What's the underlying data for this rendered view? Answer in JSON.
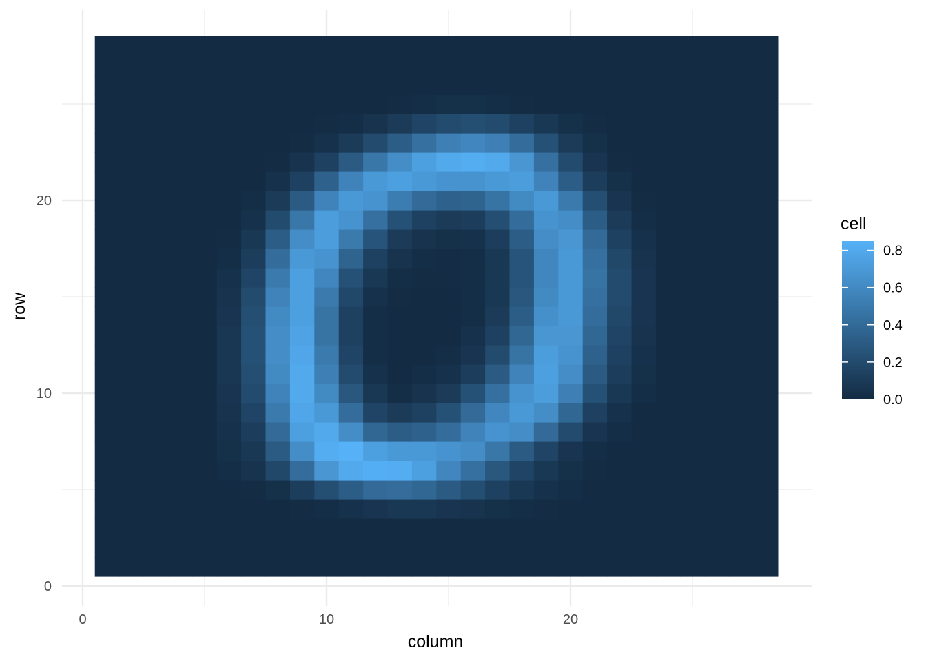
{
  "chart_data": {
    "type": "heatmap",
    "xlabel": "column",
    "ylabel": "row",
    "xlim": [
      0,
      30
    ],
    "ylim": [
      0,
      29
    ],
    "x_ticks": [
      0,
      10,
      20
    ],
    "y_ticks": [
      0,
      10,
      20
    ],
    "x_tick_labels": [
      "0",
      "10",
      "20"
    ],
    "y_tick_labels": [
      "0",
      "10",
      "20"
    ],
    "grid": true,
    "legend": {
      "title": "cell",
      "position": "right",
      "breaks": [
        0.0,
        0.2,
        0.4,
        0.6,
        0.8
      ],
      "labels": [
        "0.0",
        "0.2",
        "0.4",
        "0.6",
        "0.8"
      ],
      "range": [
        0,
        0.85
      ],
      "color_low": "#132B43",
      "color_high": "#56B1F7"
    },
    "columns": 28,
    "rows": 28,
    "note_row_order": "cells[0] is row 1 (bottom), cells[27] is row 28 (top); each inner array is columns 1..28",
    "cells": [
      [
        0,
        0,
        0,
        0,
        0,
        0,
        0,
        0,
        0,
        0,
        0,
        0,
        0,
        0,
        0,
        0,
        0,
        0,
        0,
        0,
        0,
        0,
        0,
        0,
        0,
        0,
        0,
        0
      ],
      [
        0,
        0,
        0,
        0,
        0,
        0,
        0,
        0,
        0,
        0,
        0,
        0,
        0,
        0,
        0,
        0,
        0,
        0,
        0,
        0,
        0,
        0,
        0,
        0,
        0,
        0,
        0,
        0
      ],
      [
        0,
        0,
        0,
        0,
        0,
        0,
        0,
        0,
        0,
        0,
        0,
        0,
        0,
        0,
        0,
        0,
        0,
        0,
        0,
        0,
        0,
        0,
        0,
        0,
        0,
        0,
        0,
        0
      ],
      [
        0,
        0,
        0,
        0,
        0,
        0,
        0,
        0,
        0.01,
        0.02,
        0.04,
        0.06,
        0.08,
        0.08,
        0.06,
        0.05,
        0.03,
        0.02,
        0.01,
        0,
        0,
        0,
        0,
        0,
        0,
        0,
        0,
        0
      ],
      [
        0,
        0,
        0,
        0,
        0,
        0,
        0.01,
        0.03,
        0.12,
        0.22,
        0.32,
        0.4,
        0.42,
        0.38,
        0.3,
        0.22,
        0.14,
        0.08,
        0.04,
        0.02,
        0,
        0,
        0,
        0,
        0,
        0,
        0,
        0
      ],
      [
        0,
        0,
        0,
        0,
        0,
        0.02,
        0.05,
        0.18,
        0.42,
        0.68,
        0.8,
        0.83,
        0.82,
        0.74,
        0.58,
        0.44,
        0.28,
        0.16,
        0.08,
        0.03,
        0.01,
        0,
        0,
        0,
        0,
        0,
        0,
        0
      ],
      [
        0,
        0,
        0,
        0,
        0,
        0.03,
        0.08,
        0.3,
        0.62,
        0.82,
        0.85,
        0.74,
        0.7,
        0.7,
        0.66,
        0.62,
        0.48,
        0.3,
        0.16,
        0.06,
        0.02,
        0,
        0,
        0,
        0,
        0,
        0,
        0
      ],
      [
        0,
        0,
        0,
        0,
        0,
        0.04,
        0.12,
        0.4,
        0.74,
        0.8,
        0.62,
        0.38,
        0.32,
        0.34,
        0.42,
        0.56,
        0.66,
        0.62,
        0.4,
        0.2,
        0.06,
        0.02,
        0,
        0,
        0,
        0,
        0,
        0
      ],
      [
        0,
        0,
        0,
        0,
        0,
        0.05,
        0.16,
        0.5,
        0.78,
        0.7,
        0.42,
        0.16,
        0.1,
        0.14,
        0.24,
        0.4,
        0.58,
        0.7,
        0.62,
        0.38,
        0.14,
        0.04,
        0,
        0,
        0,
        0,
        0,
        0
      ],
      [
        0,
        0,
        0,
        0,
        0,
        0.06,
        0.2,
        0.56,
        0.8,
        0.6,
        0.28,
        0.08,
        0.02,
        0.05,
        0.1,
        0.24,
        0.44,
        0.66,
        0.72,
        0.54,
        0.24,
        0.08,
        0.02,
        0,
        0,
        0,
        0,
        0
      ],
      [
        0,
        0,
        0,
        0,
        0,
        0.07,
        0.22,
        0.6,
        0.8,
        0.54,
        0.2,
        0.04,
        0,
        0.02,
        0.04,
        0.12,
        0.3,
        0.56,
        0.74,
        0.62,
        0.3,
        0.12,
        0.03,
        0,
        0,
        0,
        0,
        0
      ],
      [
        0,
        0,
        0,
        0,
        0,
        0.07,
        0.24,
        0.62,
        0.78,
        0.5,
        0.16,
        0.02,
        0,
        0,
        0.02,
        0.06,
        0.2,
        0.46,
        0.72,
        0.66,
        0.34,
        0.14,
        0.04,
        0,
        0,
        0,
        0,
        0
      ],
      [
        0,
        0,
        0,
        0,
        0,
        0.07,
        0.24,
        0.62,
        0.76,
        0.46,
        0.14,
        0.02,
        0,
        0,
        0,
        0.04,
        0.14,
        0.38,
        0.68,
        0.68,
        0.38,
        0.16,
        0.05,
        0,
        0,
        0,
        0,
        0
      ],
      [
        0,
        0,
        0,
        0,
        0,
        0.06,
        0.22,
        0.6,
        0.74,
        0.46,
        0.14,
        0.02,
        0,
        0,
        0,
        0.02,
        0.1,
        0.32,
        0.64,
        0.7,
        0.42,
        0.18,
        0.06,
        0,
        0,
        0,
        0,
        0
      ],
      [
        0,
        0,
        0,
        0,
        0,
        0.05,
        0.2,
        0.56,
        0.74,
        0.5,
        0.18,
        0.04,
        0.01,
        0,
        0,
        0.02,
        0.08,
        0.28,
        0.6,
        0.7,
        0.44,
        0.2,
        0.06,
        0,
        0,
        0,
        0,
        0
      ],
      [
        0,
        0,
        0,
        0,
        0,
        0.04,
        0.16,
        0.5,
        0.74,
        0.58,
        0.24,
        0.08,
        0.02,
        0.01,
        0.01,
        0.02,
        0.08,
        0.26,
        0.58,
        0.7,
        0.46,
        0.2,
        0.06,
        0,
        0,
        0,
        0,
        0
      ],
      [
        0,
        0,
        0,
        0,
        0,
        0.02,
        0.12,
        0.42,
        0.7,
        0.66,
        0.36,
        0.14,
        0.05,
        0.02,
        0.01,
        0.02,
        0.08,
        0.26,
        0.58,
        0.7,
        0.44,
        0.18,
        0.05,
        0,
        0,
        0,
        0,
        0
      ],
      [
        0,
        0,
        0,
        0,
        0,
        0.01,
        0.08,
        0.32,
        0.62,
        0.72,
        0.5,
        0.26,
        0.1,
        0.05,
        0.03,
        0.04,
        0.12,
        0.32,
        0.62,
        0.68,
        0.4,
        0.14,
        0.04,
        0,
        0,
        0,
        0,
        0
      ],
      [
        0,
        0,
        0,
        0,
        0,
        0,
        0.04,
        0.2,
        0.48,
        0.72,
        0.66,
        0.44,
        0.24,
        0.14,
        0.1,
        0.12,
        0.22,
        0.42,
        0.66,
        0.62,
        0.32,
        0.1,
        0.02,
        0,
        0,
        0,
        0,
        0
      ],
      [
        0,
        0,
        0,
        0,
        0,
        0,
        0.02,
        0.1,
        0.3,
        0.56,
        0.7,
        0.66,
        0.52,
        0.4,
        0.34,
        0.36,
        0.46,
        0.6,
        0.7,
        0.5,
        0.22,
        0.06,
        0.01,
        0,
        0,
        0,
        0,
        0
      ],
      [
        0,
        0,
        0,
        0,
        0,
        0,
        0,
        0.04,
        0.14,
        0.34,
        0.56,
        0.7,
        0.74,
        0.7,
        0.66,
        0.66,
        0.7,
        0.72,
        0.56,
        0.32,
        0.12,
        0.03,
        0,
        0,
        0,
        0,
        0,
        0
      ],
      [
        0,
        0,
        0,
        0,
        0,
        0,
        0,
        0.01,
        0.05,
        0.14,
        0.3,
        0.48,
        0.62,
        0.74,
        0.8,
        0.82,
        0.8,
        0.68,
        0.44,
        0.2,
        0.06,
        0.01,
        0,
        0,
        0,
        0,
        0,
        0
      ],
      [
        0,
        0,
        0,
        0,
        0,
        0,
        0,
        0,
        0.01,
        0.04,
        0.1,
        0.2,
        0.32,
        0.44,
        0.54,
        0.58,
        0.54,
        0.42,
        0.24,
        0.1,
        0.03,
        0,
        0,
        0,
        0,
        0,
        0,
        0
      ],
      [
        0,
        0,
        0,
        0,
        0,
        0,
        0,
        0,
        0,
        0.01,
        0.02,
        0.05,
        0.1,
        0.16,
        0.2,
        0.22,
        0.2,
        0.14,
        0.08,
        0.03,
        0.01,
        0,
        0,
        0,
        0,
        0,
        0,
        0
      ],
      [
        0,
        0,
        0,
        0,
        0,
        0,
        0,
        0,
        0,
        0,
        0,
        0,
        0.01,
        0.02,
        0.03,
        0.03,
        0.02,
        0.01,
        0,
        0,
        0,
        0,
        0,
        0,
        0,
        0,
        0,
        0
      ],
      [
        0,
        0,
        0,
        0,
        0,
        0,
        0,
        0,
        0,
        0,
        0,
        0,
        0,
        0,
        0,
        0,
        0,
        0,
        0,
        0,
        0,
        0,
        0,
        0,
        0,
        0,
        0,
        0
      ],
      [
        0,
        0,
        0,
        0,
        0,
        0,
        0,
        0,
        0,
        0,
        0,
        0,
        0,
        0,
        0,
        0,
        0,
        0,
        0,
        0,
        0,
        0,
        0,
        0,
        0,
        0,
        0,
        0
      ],
      [
        0,
        0,
        0,
        0,
        0,
        0,
        0,
        0,
        0,
        0,
        0,
        0,
        0,
        0,
        0,
        0,
        0,
        0,
        0,
        0,
        0,
        0,
        0,
        0,
        0,
        0,
        0,
        0
      ]
    ]
  }
}
